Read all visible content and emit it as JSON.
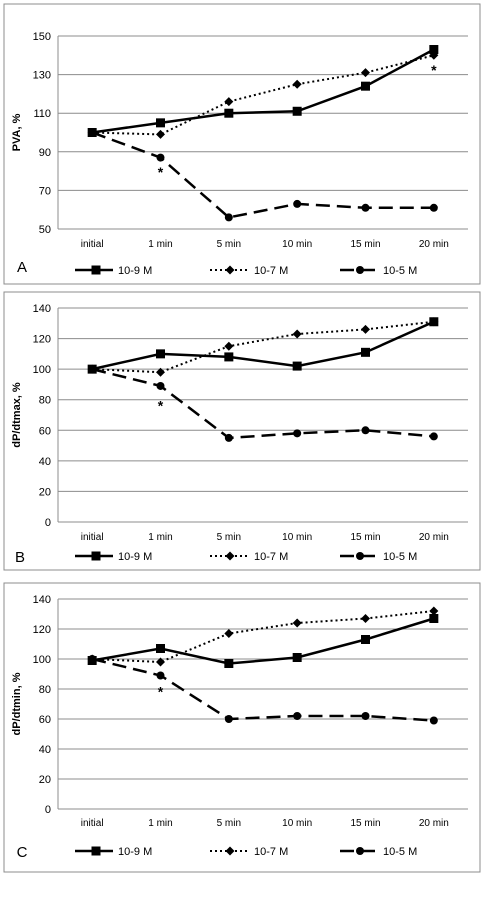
{
  "chart_data": [
    {
      "type": "line",
      "panel_label": "A",
      "ylabel": "PVA, %",
      "ylim": [
        50,
        150
      ],
      "yticks": [
        50,
        70,
        90,
        110,
        130,
        150
      ],
      "categories": [
        "initial",
        "1 min",
        "5 min",
        "10 min",
        "15  min",
        "20 min"
      ],
      "grid": true,
      "legend_position": "bottom",
      "series": [
        {
          "name": "10-9 M",
          "marker": "square",
          "dash": "solid",
          "values": [
            100,
            105,
            110,
            111,
            124,
            143
          ]
        },
        {
          "name": "10-7 M",
          "marker": "diamond",
          "dash": "dotted",
          "values": [
            100,
            99,
            116,
            125,
            131,
            140
          ]
        },
        {
          "name": "10-5 M",
          "marker": "circle",
          "dash": "dashed",
          "values": [
            100,
            87,
            56,
            63,
            61,
            61
          ]
        }
      ],
      "annotations": [
        {
          "text": "*",
          "x": "1 min",
          "y": 80
        },
        {
          "text": "*",
          "x": "20 min",
          "y": 133
        }
      ]
    },
    {
      "type": "line",
      "panel_label": "B",
      "ylabel": "dP/dtmax, %",
      "ylim": [
        0,
        140
      ],
      "yticks": [
        0,
        20,
        40,
        60,
        80,
        100,
        120,
        140
      ],
      "categories": [
        "initial",
        "1 min",
        "5 min",
        "10 min",
        "15  min",
        "20 min"
      ],
      "grid": true,
      "legend_position": "bottom",
      "series": [
        {
          "name": "10-9 M",
          "marker": "square",
          "dash": "solid",
          "values": [
            100,
            110,
            108,
            102,
            111,
            131
          ]
        },
        {
          "name": "10-7 M",
          "marker": "diamond",
          "dash": "dotted",
          "values": [
            100,
            98,
            115,
            123,
            126,
            131
          ]
        },
        {
          "name": "10-5 M",
          "marker": "circle",
          "dash": "dashed",
          "values": [
            100,
            89,
            55,
            58,
            60,
            56
          ]
        }
      ],
      "annotations": [
        {
          "text": "*",
          "x": "1 min",
          "y": 77
        }
      ]
    },
    {
      "type": "line",
      "panel_label": "C",
      "ylabel": "dP/dtmin, %",
      "ylim": [
        0,
        140
      ],
      "yticks": [
        0,
        20,
        40,
        60,
        80,
        100,
        120,
        140
      ],
      "categories": [
        "initial",
        "1 min",
        "5 min",
        "10 min",
        "15  min",
        "20 min"
      ],
      "grid": true,
      "legend_position": "bottom",
      "series": [
        {
          "name": "10-9 M",
          "marker": "square",
          "dash": "solid",
          "values": [
            99,
            107,
            97,
            101,
            113,
            127
          ]
        },
        {
          "name": "10-7 M",
          "marker": "diamond",
          "dash": "dotted",
          "values": [
            100,
            98,
            117,
            124,
            127,
            132
          ]
        },
        {
          "name": "10-5 M",
          "marker": "circle",
          "dash": "dashed",
          "values": [
            100,
            89,
            60,
            62,
            62,
            59
          ]
        }
      ],
      "annotations": [
        {
          "text": "*",
          "x": "1 min",
          "y": 79
        }
      ]
    }
  ]
}
